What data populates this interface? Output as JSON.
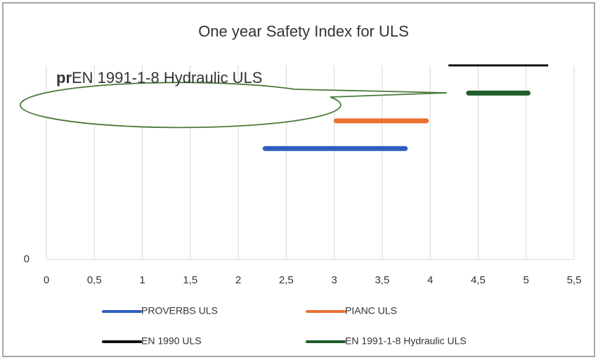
{
  "chart_data": {
    "type": "line",
    "title": "One year Safety Index for ULS",
    "annotation": {
      "bold": "pr",
      "text": "EN 1991-1-8 Hydraulic ULS"
    },
    "xlim": [
      0,
      5.5
    ],
    "xticks": [
      0,
      {
        "value": 0.5,
        "label": "0,5"
      },
      1,
      {
        "value": 1.5,
        "label": "1,5"
      },
      2,
      {
        "value": 2.5,
        "label": "2,5"
      },
      3,
      {
        "value": 3.5,
        "label": "3,5"
      },
      4,
      {
        "value": 4.5,
        "label": "4,5"
      },
      5,
      {
        "value": 5.5,
        "label": "5,5"
      }
    ],
    "ylim": [
      0,
      7
    ],
    "yticks": [
      0
    ],
    "grid": true,
    "legend": "bottom",
    "series": [
      {
        "name": "PROVERBS ULS",
        "color": "#2e5fc0",
        "x": [
          2.28,
          3.74
        ],
        "values": [
          4,
          4
        ]
      },
      {
        "name": "PIANC ULS",
        "color": "#e8712f",
        "x": [
          3.02,
          3.96
        ],
        "values": [
          5,
          5
        ]
      },
      {
        "name": "EN 1990 ULS",
        "color": "#111111",
        "x": [
          4.19,
          5.23
        ],
        "values": [
          7,
          7
        ]
      },
      {
        "name": "EN 1991-1-8 Hydraulic ULS",
        "color": "#1f5e2a",
        "x": [
          4.4,
          5.02
        ],
        "values": [
          6,
          6
        ]
      }
    ]
  }
}
